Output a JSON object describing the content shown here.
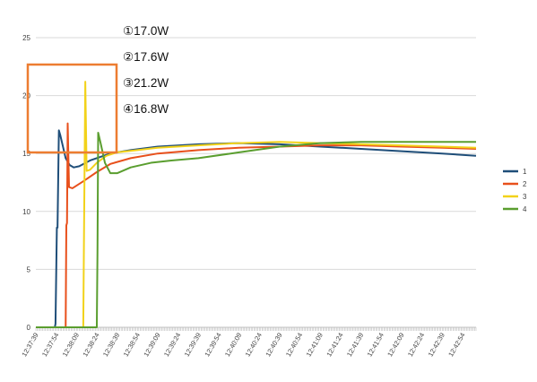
{
  "chart_data": {
    "type": "line",
    "title": "",
    "xlabel": "",
    "ylabel": "",
    "ylim": [
      0,
      25
    ],
    "yticks": [
      0,
      5,
      10,
      15,
      20,
      25
    ],
    "grid": true,
    "legend_position": "right",
    "x_tick_labels": [
      "12:37:39",
      "12:37:54",
      "12:38:09",
      "12:38:24",
      "12:38:39",
      "12:38:54",
      "12:39:09",
      "12:39:24",
      "12:39:39",
      "12:39:54",
      "12:40:09",
      "12:40:24",
      "12:40:39",
      "12:40:54",
      "12:41:09",
      "12:41:24",
      "12:41:39",
      "12:41:54",
      "12:42:09",
      "12:42:24",
      "12:42:39",
      "12:42:54"
    ],
    "x_tick_step_seconds": 15,
    "x_range_seconds": [
      0,
      325
    ],
    "series": [
      {
        "name": "1",
        "color": "#1f4e79",
        "points": [
          [
            0,
            0
          ],
          [
            14,
            0
          ],
          [
            14.5,
            0.3
          ],
          [
            15.5,
            8.6
          ],
          [
            16,
            8.6
          ],
          [
            17,
            17.0
          ],
          [
            18,
            16.6
          ],
          [
            20,
            15.6
          ],
          [
            22,
            14.6
          ],
          [
            25,
            14.0
          ],
          [
            28,
            13.8
          ],
          [
            32,
            13.9
          ],
          [
            40,
            14.4
          ],
          [
            55,
            15.0
          ],
          [
            70,
            15.3
          ],
          [
            90,
            15.6
          ],
          [
            120,
            15.8
          ],
          [
            150,
            15.9
          ],
          [
            180,
            15.8
          ],
          [
            210,
            15.6
          ],
          [
            240,
            15.4
          ],
          [
            270,
            15.2
          ],
          [
            300,
            15.0
          ],
          [
            325,
            14.8
          ]
        ]
      },
      {
        "name": "2",
        "color": "#e8501c",
        "points": [
          [
            0,
            0
          ],
          [
            22,
            0
          ],
          [
            22.5,
            8.8
          ],
          [
            23,
            9.0
          ],
          [
            23.5,
            17.6
          ],
          [
            24.5,
            12.1
          ],
          [
            27,
            12.0
          ],
          [
            35,
            12.6
          ],
          [
            45,
            13.4
          ],
          [
            55,
            14.1
          ],
          [
            70,
            14.6
          ],
          [
            90,
            15.0
          ],
          [
            120,
            15.3
          ],
          [
            150,
            15.5
          ],
          [
            180,
            15.6
          ],
          [
            210,
            15.7
          ],
          [
            240,
            15.7
          ],
          [
            270,
            15.6
          ],
          [
            300,
            15.5
          ],
          [
            325,
            15.4
          ]
        ]
      },
      {
        "name": "3",
        "color": "#f2d21a",
        "points": [
          [
            0,
            0
          ],
          [
            35,
            0
          ],
          [
            35.5,
            7.3
          ],
          [
            36.5,
            21.2
          ],
          [
            37.5,
            13.5
          ],
          [
            40,
            13.6
          ],
          [
            45,
            14.2
          ],
          [
            52,
            14.8
          ],
          [
            60,
            15.1
          ],
          [
            75,
            15.3
          ],
          [
            90,
            15.5
          ],
          [
            120,
            15.7
          ],
          [
            150,
            15.9
          ],
          [
            180,
            16.0
          ],
          [
            210,
            15.9
          ],
          [
            240,
            15.8
          ],
          [
            270,
            15.7
          ],
          [
            300,
            15.6
          ],
          [
            325,
            15.5
          ]
        ]
      },
      {
        "name": "4",
        "color": "#5a9e2f",
        "points": [
          [
            0,
            0
          ],
          [
            45,
            0
          ],
          [
            45.5,
            6.5
          ],
          [
            46,
            16.8
          ],
          [
            48,
            15.8
          ],
          [
            51,
            14.2
          ],
          [
            55,
            13.3
          ],
          [
            60,
            13.3
          ],
          [
            70,
            13.8
          ],
          [
            85,
            14.2
          ],
          [
            100,
            14.4
          ],
          [
            120,
            14.6
          ],
          [
            150,
            15.1
          ],
          [
            180,
            15.6
          ],
          [
            210,
            15.9
          ],
          [
            240,
            16.0
          ],
          [
            270,
            16.0
          ],
          [
            300,
            16.0
          ],
          [
            325,
            16.0
          ]
        ]
      }
    ],
    "annotations": [
      "①17.0W",
      "②17.6W",
      "③21.2W",
      "④16.8W"
    ],
    "highlight_box_color": "#ed7d31"
  }
}
